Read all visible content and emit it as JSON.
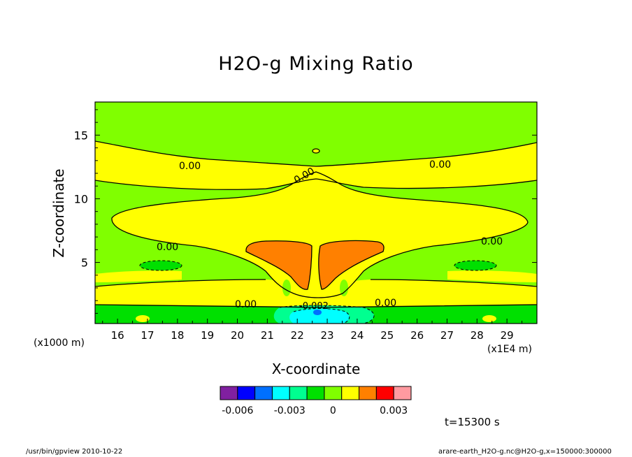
{
  "chart_data": {
    "type": "contour",
    "title": "H2O-g Mixing Ratio",
    "xlabel": "X-coordinate",
    "ylabel": "Z-coordinate",
    "x_unit": "(x1E4 m)",
    "y_unit": "(x1000 m)",
    "xlim": [
      15.25,
      30.0
    ],
    "ylim": [
      0.2,
      17.6
    ],
    "x_ticks": [
      "16",
      "17",
      "18",
      "19",
      "20",
      "21",
      "22",
      "23",
      "24",
      "25",
      "26",
      "27",
      "28",
      "29"
    ],
    "y_ticks": [
      "5",
      "10",
      "15"
    ],
    "contour_labels": [
      "0.00",
      "0.00",
      "0.00",
      "0.00",
      "0.00",
      "0.00",
      "0.00",
      "-0.002"
    ],
    "colorbar": {
      "colors": [
        "#8020a0",
        "#0000ff",
        "#0070ff",
        "#00ffff",
        "#00ff90",
        "#00e000",
        "#80ff00",
        "#ffff00",
        "#ff8000",
        "#ff0000",
        "#ff9aa0"
      ],
      "labels": [
        "-0.006",
        "-0.003",
        "0",
        "0.003"
      ]
    },
    "time_text": "t=15300 s"
  },
  "footer": {
    "left": "/usr/bin/gpview  2010-10-22",
    "right": "arare-earth_H2O-g.nc@H2O-g,x=150000:300000"
  }
}
